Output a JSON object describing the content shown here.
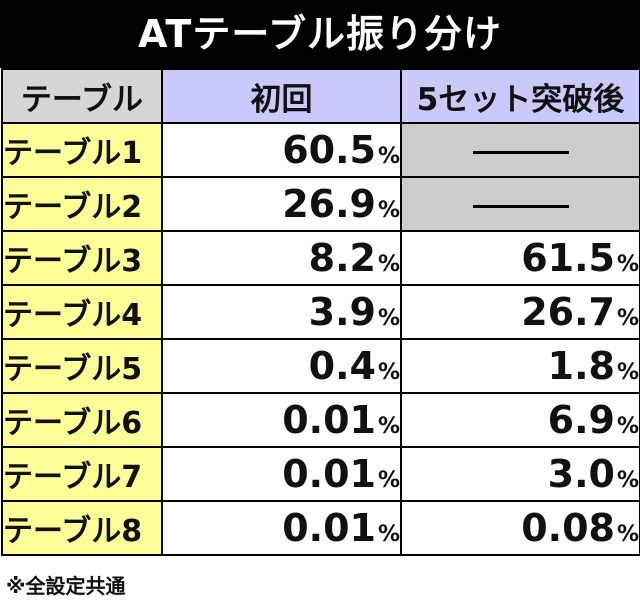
{
  "title": "ATテーブル振り分け",
  "header": {
    "col_table": "テーブル",
    "col_first": "初回",
    "col_after": "5セット突破後"
  },
  "pct_symbol": "%",
  "rows": [
    {
      "label": "テーブル1",
      "first": "60.5",
      "after": null
    },
    {
      "label": "テーブル2",
      "first": "26.9",
      "after": null
    },
    {
      "label": "テーブル3",
      "first": "8.2",
      "after": "61.5"
    },
    {
      "label": "テーブル4",
      "first": "3.9",
      "after": "26.7"
    },
    {
      "label": "テーブル5",
      "first": "0.4",
      "after": "1.8"
    },
    {
      "label": "テーブル6",
      "first": "0.01",
      "after": "6.9"
    },
    {
      "label": "テーブル7",
      "first": "0.01",
      "after": "3.0"
    },
    {
      "label": "テーブル8",
      "first": "0.01",
      "after": "0.08"
    }
  ],
  "footnote": "※全設定共通",
  "colors": {
    "title_bg": "#000000",
    "header_gray": "#d6d6d6",
    "header_lavender": "#c9c9fb",
    "label_yellow": "#ffff99",
    "na_gray": "#cccccc"
  }
}
